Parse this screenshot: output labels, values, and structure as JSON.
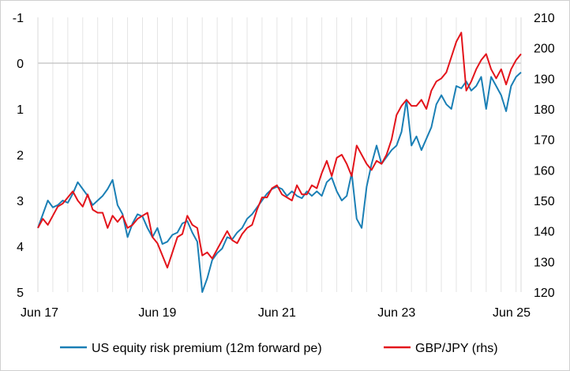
{
  "chart_data": {
    "type": "line",
    "title": "",
    "xlabel": "",
    "ylabel": "",
    "x_tick_labels": [
      "Jun 17",
      "Jun 19",
      "Jun 21",
      "Jun 23",
      "Jun 25"
    ],
    "y_left": {
      "ticks": [
        "-1",
        "0",
        "1",
        "2",
        "3",
        "4",
        "5"
      ],
      "range": [
        -1,
        5
      ],
      "inverted": true
    },
    "y_right": {
      "ticks": [
        "120",
        "130",
        "140",
        "150",
        "160",
        "170",
        "180",
        "190",
        "200",
        "210"
      ],
      "range": [
        120,
        210
      ]
    },
    "x_range": [
      "2017-06",
      "2025-07"
    ],
    "grid": "vertical lines every 3 months; horizontal line at 0",
    "legend_position": "bottom",
    "series": [
      {
        "name": "US equity risk premium (12m forward pe)",
        "axis": "left",
        "color": "#1a7fb5",
        "points": [
          [
            "2017-06",
            3.6
          ],
          [
            "2017-07",
            3.3
          ],
          [
            "2017-08",
            3.0
          ],
          [
            "2017-09",
            3.15
          ],
          [
            "2017-10",
            3.1
          ],
          [
            "2017-11",
            3.0
          ],
          [
            "2017-12",
            3.05
          ],
          [
            "2018-01",
            2.85
          ],
          [
            "2018-02",
            2.6
          ],
          [
            "2018-03",
            2.75
          ],
          [
            "2018-04",
            2.9
          ],
          [
            "2018-05",
            3.1
          ],
          [
            "2018-06",
            3.0
          ],
          [
            "2018-07",
            2.9
          ],
          [
            "2018-08",
            2.75
          ],
          [
            "2018-09",
            2.55
          ],
          [
            "2018-10",
            3.1
          ],
          [
            "2018-11",
            3.3
          ],
          [
            "2018-12",
            3.8
          ],
          [
            "2019-01",
            3.5
          ],
          [
            "2019-02",
            3.3
          ],
          [
            "2019-03",
            3.35
          ],
          [
            "2019-04",
            3.6
          ],
          [
            "2019-05",
            3.8
          ],
          [
            "2019-06",
            3.6
          ],
          [
            "2019-07",
            3.95
          ],
          [
            "2019-08",
            3.9
          ],
          [
            "2019-09",
            3.75
          ],
          [
            "2019-10",
            3.7
          ],
          [
            "2019-11",
            3.5
          ],
          [
            "2019-12",
            3.45
          ],
          [
            "2020-01",
            3.7
          ],
          [
            "2020-02",
            3.9
          ],
          [
            "2020-03",
            5.0
          ],
          [
            "2020-04",
            4.7
          ],
          [
            "2020-05",
            4.3
          ],
          [
            "2020-06",
            4.15
          ],
          [
            "2020-07",
            4.05
          ],
          [
            "2020-08",
            3.8
          ],
          [
            "2020-09",
            3.85
          ],
          [
            "2020-10",
            3.7
          ],
          [
            "2020-11",
            3.6
          ],
          [
            "2020-12",
            3.4
          ],
          [
            "2021-01",
            3.3
          ],
          [
            "2021-02",
            3.15
          ],
          [
            "2021-03",
            3.0
          ],
          [
            "2021-04",
            2.85
          ],
          [
            "2021-05",
            2.75
          ],
          [
            "2021-06",
            2.7
          ],
          [
            "2021-07",
            2.75
          ],
          [
            "2021-08",
            2.9
          ],
          [
            "2021-09",
            2.8
          ],
          [
            "2021-10",
            2.9
          ],
          [
            "2021-11",
            2.95
          ],
          [
            "2021-12",
            2.8
          ],
          [
            "2022-01",
            2.9
          ],
          [
            "2022-02",
            2.8
          ],
          [
            "2022-03",
            2.9
          ],
          [
            "2022-04",
            2.6
          ],
          [
            "2022-05",
            2.5
          ],
          [
            "2022-06",
            2.8
          ],
          [
            "2022-07",
            3.0
          ],
          [
            "2022-08",
            2.9
          ],
          [
            "2022-09",
            2.4
          ],
          [
            "2022-10",
            3.4
          ],
          [
            "2022-11",
            3.6
          ],
          [
            "2022-12",
            2.7
          ],
          [
            "2023-01",
            2.2
          ],
          [
            "2023-02",
            1.8
          ],
          [
            "2023-03",
            2.2
          ],
          [
            "2023-04",
            2.05
          ],
          [
            "2023-05",
            1.9
          ],
          [
            "2023-06",
            1.8
          ],
          [
            "2023-07",
            1.5
          ],
          [
            "2023-08",
            0.8
          ],
          [
            "2023-09",
            1.8
          ],
          [
            "2023-10",
            1.6
          ],
          [
            "2023-11",
            1.9
          ],
          [
            "2023-12",
            1.65
          ],
          [
            "2024-01",
            1.4
          ],
          [
            "2024-02",
            0.9
          ],
          [
            "2024-03",
            0.7
          ],
          [
            "2024-04",
            0.9
          ],
          [
            "2024-05",
            1.0
          ],
          [
            "2024-06",
            0.5
          ],
          [
            "2024-07",
            0.55
          ],
          [
            "2024-08",
            0.4
          ],
          [
            "2024-09",
            0.6
          ],
          [
            "2024-10",
            0.5
          ],
          [
            "2024-11",
            0.3
          ],
          [
            "2024-12",
            1.0
          ],
          [
            "2025-01",
            0.3
          ],
          [
            "2025-02",
            0.5
          ],
          [
            "2025-03",
            0.7
          ],
          [
            "2025-04",
            1.05
          ],
          [
            "2025-05",
            0.5
          ],
          [
            "2025-06",
            0.3
          ],
          [
            "2025-07",
            0.2
          ]
        ]
      },
      {
        "name": "GBP/JPY (rhs)",
        "axis": "right",
        "color": "#e3141b",
        "points": [
          [
            "2017-06",
            141
          ],
          [
            "2017-07",
            144
          ],
          [
            "2017-08",
            142
          ],
          [
            "2017-09",
            145
          ],
          [
            "2017-10",
            148
          ],
          [
            "2017-11",
            149
          ],
          [
            "2017-12",
            151
          ],
          [
            "2018-01",
            153
          ],
          [
            "2018-02",
            150
          ],
          [
            "2018-03",
            148
          ],
          [
            "2018-04",
            152
          ],
          [
            "2018-05",
            147
          ],
          [
            "2018-06",
            146
          ],
          [
            "2018-07",
            146
          ],
          [
            "2018-08",
            141
          ],
          [
            "2018-09",
            145
          ],
          [
            "2018-10",
            143
          ],
          [
            "2018-11",
            145
          ],
          [
            "2018-12",
            141
          ],
          [
            "2019-01",
            142
          ],
          [
            "2019-02",
            144
          ],
          [
            "2019-03",
            145
          ],
          [
            "2019-04",
            146
          ],
          [
            "2019-05",
            138
          ],
          [
            "2019-06",
            136
          ],
          [
            "2019-07",
            132
          ],
          [
            "2019-08",
            128
          ],
          [
            "2019-09",
            133
          ],
          [
            "2019-10",
            138
          ],
          [
            "2019-11",
            139
          ],
          [
            "2019-12",
            145
          ],
          [
            "2020-01",
            142
          ],
          [
            "2020-02",
            141
          ],
          [
            "2020-03",
            132
          ],
          [
            "2020-04",
            133
          ],
          [
            "2020-05",
            131
          ],
          [
            "2020-06",
            134
          ],
          [
            "2020-07",
            137
          ],
          [
            "2020-08",
            140
          ],
          [
            "2020-09",
            137
          ],
          [
            "2020-10",
            136
          ],
          [
            "2020-11",
            139
          ],
          [
            "2020-12",
            141
          ],
          [
            "2021-01",
            142
          ],
          [
            "2021-02",
            147
          ],
          [
            "2021-03",
            151
          ],
          [
            "2021-04",
            151
          ],
          [
            "2021-05",
            154
          ],
          [
            "2021-06",
            155
          ],
          [
            "2021-07",
            152
          ],
          [
            "2021-08",
            151
          ],
          [
            "2021-09",
            150
          ],
          [
            "2021-10",
            155
          ],
          [
            "2021-11",
            152
          ],
          [
            "2021-12",
            152
          ],
          [
            "2022-01",
            155
          ],
          [
            "2022-02",
            154
          ],
          [
            "2022-03",
            159
          ],
          [
            "2022-04",
            163
          ],
          [
            "2022-05",
            158
          ],
          [
            "2022-06",
            164
          ],
          [
            "2022-07",
            165
          ],
          [
            "2022-08",
            162
          ],
          [
            "2022-09",
            158
          ],
          [
            "2022-10",
            168
          ],
          [
            "2022-11",
            165
          ],
          [
            "2022-12",
            162
          ],
          [
            "2023-01",
            160
          ],
          [
            "2023-02",
            163
          ],
          [
            "2023-03",
            162
          ],
          [
            "2023-04",
            165
          ],
          [
            "2023-05",
            170
          ],
          [
            "2023-06",
            178
          ],
          [
            "2023-07",
            181
          ],
          [
            "2023-08",
            183
          ],
          [
            "2023-09",
            181
          ],
          [
            "2023-10",
            181
          ],
          [
            "2023-11",
            183
          ],
          [
            "2023-12",
            180
          ],
          [
            "2024-01",
            186
          ],
          [
            "2024-02",
            189
          ],
          [
            "2024-03",
            190
          ],
          [
            "2024-04",
            192
          ],
          [
            "2024-05",
            197
          ],
          [
            "2024-06",
            202
          ],
          [
            "2024-07",
            205
          ],
          [
            "2024-08",
            186
          ],
          [
            "2024-09",
            189
          ],
          [
            "2024-10",
            193
          ],
          [
            "2024-11",
            196
          ],
          [
            "2024-12",
            198
          ],
          [
            "2025-01",
            193
          ],
          [
            "2025-02",
            190
          ],
          [
            "2025-03",
            193
          ],
          [
            "2025-04",
            188
          ],
          [
            "2025-05",
            193
          ],
          [
            "2025-06",
            196
          ],
          [
            "2025-07",
            198
          ]
        ]
      }
    ]
  }
}
